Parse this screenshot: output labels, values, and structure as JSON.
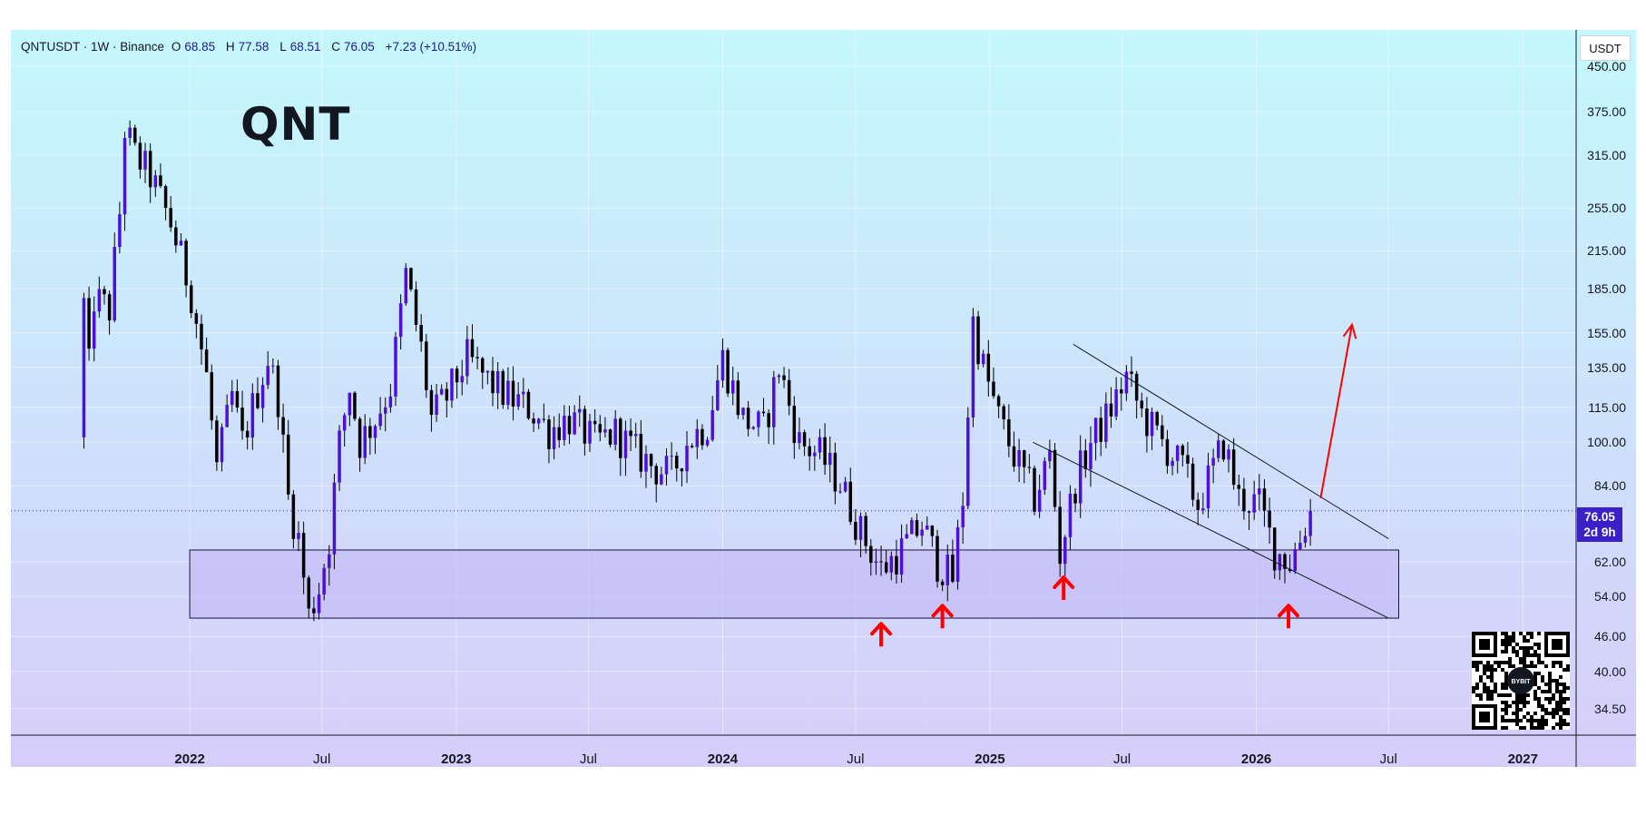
{
  "header": {
    "symbol": "QNTUSDT · 1W · Binance",
    "open_label": "O",
    "open": "68.85",
    "high_label": "H",
    "high": "77.58",
    "low_label": "L",
    "low": "68.51",
    "close_label": "C",
    "close": "76.05",
    "change": "+7.23 (+10.51%)"
  },
  "title": "QNT",
  "currency": "USDT",
  "last_price": {
    "value": "76.05",
    "countdown": "2d 9h"
  },
  "qr_logo_text": "BYBIT",
  "colors": {
    "background_top": "#c4f8fc",
    "background_bottom": "#d7cdfa",
    "candle_up": "#4c10d6",
    "candle_down": "#000000",
    "arrow": "#ff0000",
    "zone_fill": "#c5bdf7",
    "price_tag": "#3b1fc7"
  },
  "chart_data": {
    "type": "candlestick",
    "interval": "1W",
    "scale": "log",
    "ylim": [
      31,
      520
    ],
    "price_ticks": [
      "450.00",
      "375.00",
      "315.00",
      "255.00",
      "215.00",
      "185.00",
      "155.00",
      "135.00",
      "115.00",
      "100.00",
      "84.00",
      "62.00",
      "54.00",
      "46.00",
      "40.00",
      "34.50"
    ],
    "time_ticks": [
      {
        "label": "2022",
        "date": "2022-01-01",
        "bold": true
      },
      {
        "label": "Jul",
        "date": "2022-07-01",
        "bold": false
      },
      {
        "label": "2023",
        "date": "2023-01-01",
        "bold": true
      },
      {
        "label": "Jul",
        "date": "2023-07-01",
        "bold": false
      },
      {
        "label": "2024",
        "date": "2024-01-01",
        "bold": true
      },
      {
        "label": "Jul",
        "date": "2024-07-01",
        "bold": false
      },
      {
        "label": "2025",
        "date": "2025-01-01",
        "bold": true
      },
      {
        "label": "Jul",
        "date": "2025-07-01",
        "bold": false
      },
      {
        "label": "2026",
        "date": "2026-01-01",
        "bold": true
      },
      {
        "label": "Jul",
        "date": "2026-07-01",
        "bold": false
      },
      {
        "label": "2027",
        "date": "2027-01-01",
        "bold": true
      }
    ],
    "xlim": [
      "2021-05-01",
      "2027-03-15"
    ],
    "price_path": [
      [
        "2021-08-09",
        102
      ],
      [
        "2021-08-23",
        178
      ],
      [
        "2021-09-13",
        170
      ],
      [
        "2021-09-27",
        250
      ],
      [
        "2021-10-04",
        350
      ],
      [
        "2021-10-18",
        315
      ],
      [
        "2021-11-08",
        290
      ],
      [
        "2021-12-06",
        240
      ],
      [
        "2022-01-03",
        182
      ],
      [
        "2022-01-24",
        130
      ],
      [
        "2022-02-07",
        90
      ],
      [
        "2022-02-28",
        120
      ],
      [
        "2022-03-14",
        100
      ],
      [
        "2022-03-28",
        115
      ],
      [
        "2022-04-18",
        140
      ],
      [
        "2022-05-02",
        120
      ],
      [
        "2022-05-16",
        80
      ],
      [
        "2022-05-30",
        68
      ],
      [
        "2022-06-13",
        50
      ],
      [
        "2022-06-27",
        56
      ],
      [
        "2022-07-11",
        68
      ],
      [
        "2022-07-25",
        100
      ],
      [
        "2022-08-08",
        125
      ],
      [
        "2022-08-22",
        100
      ],
      [
        "2022-09-12",
        110
      ],
      [
        "2022-10-03",
        125
      ],
      [
        "2022-10-24",
        195
      ],
      [
        "2022-11-14",
        145
      ],
      [
        "2022-11-28",
        110
      ],
      [
        "2022-12-19",
        120
      ],
      [
        "2023-01-16",
        140
      ],
      [
        "2023-02-13",
        128
      ],
      [
        "2023-03-13",
        120
      ],
      [
        "2023-04-10",
        115
      ],
      [
        "2023-05-08",
        105
      ],
      [
        "2023-06-05",
        110
      ],
      [
        "2023-07-10",
        100
      ],
      [
        "2023-08-07",
        104
      ],
      [
        "2023-09-04",
        96
      ],
      [
        "2023-10-02",
        90
      ],
      [
        "2023-10-23",
        88
      ],
      [
        "2023-11-13",
        100
      ],
      [
        "2023-12-11",
        108
      ],
      [
        "2024-01-01",
        140
      ],
      [
        "2024-01-29",
        110
      ],
      [
        "2024-02-26",
        105
      ],
      [
        "2024-03-18",
        135
      ],
      [
        "2024-04-15",
        100
      ],
      [
        "2024-05-13",
        95
      ],
      [
        "2024-06-10",
        85
      ],
      [
        "2024-07-08",
        70
      ],
      [
        "2024-08-05",
        60
      ],
      [
        "2024-09-02",
        65
      ],
      [
        "2024-09-30",
        72
      ],
      [
        "2024-10-21",
        62
      ],
      [
        "2024-11-11",
        58
      ],
      [
        "2024-11-25",
        80
      ],
      [
        "2024-12-09",
        162
      ],
      [
        "2024-12-23",
        135
      ],
      [
        "2025-01-13",
        110
      ],
      [
        "2025-02-03",
        95
      ],
      [
        "2025-03-03",
        80
      ],
      [
        "2025-03-24",
        95
      ],
      [
        "2025-04-07",
        64
      ],
      [
        "2025-04-28",
        85
      ],
      [
        "2025-05-19",
        100
      ],
      [
        "2025-06-09",
        110
      ],
      [
        "2025-07-07",
        130
      ],
      [
        "2025-07-28",
        112
      ],
      [
        "2025-08-25",
        100
      ],
      [
        "2025-09-22",
        90
      ],
      [
        "2025-10-13",
        78
      ],
      [
        "2025-11-03",
        90
      ],
      [
        "2025-11-17",
        100
      ],
      [
        "2025-12-08",
        80
      ],
      [
        "2026-01-05",
        78
      ],
      [
        "2026-01-26",
        65
      ],
      [
        "2026-02-16",
        62
      ],
      [
        "2026-03-02",
        68
      ],
      [
        "2026-03-16",
        76.05
      ]
    ],
    "annotations": {
      "support_zone": {
        "from": "2022-01-01",
        "to": "2026-07-15",
        "price_low": 49.5,
        "price_high": 65
      },
      "channel_upper": [
        [
          "2025-04-25",
          148
        ],
        [
          "2026-07-01",
          68
        ]
      ],
      "channel_lower": [
        [
          "2025-03-01",
          100
        ],
        [
          "2026-07-01",
          49.5
        ]
      ],
      "projection_arrow": [
        [
          "2026-03-30",
          80
        ],
        [
          "2026-05-12",
          160
        ]
      ],
      "up_arrows": [
        {
          "date": "2024-08-05",
          "price": 46.5
        },
        {
          "date": "2024-10-28",
          "price": 50
        },
        {
          "date": "2025-04-12",
          "price": 56
        },
        {
          "date": "2026-02-14",
          "price": 50
        }
      ],
      "last_price_line": 76.05
    }
  }
}
